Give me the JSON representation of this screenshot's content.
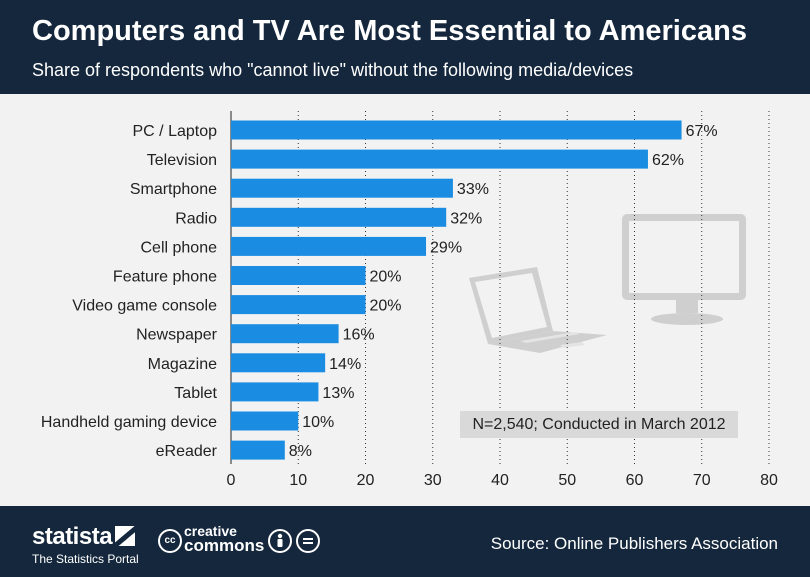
{
  "header": {
    "title": "Computers and TV Are Most Essential to Americans",
    "subtitle": "Share of respondents who \"cannot live\" without the following media/devices"
  },
  "chart_data": {
    "type": "bar",
    "orientation": "horizontal",
    "categories": [
      "PC / Laptop",
      "Television",
      "Smartphone",
      "Radio",
      "Cell phone",
      "Feature phone",
      "Video game console",
      "Newspaper",
      "Magazine",
      "Tablet",
      "Handheld gaming device",
      "eReader"
    ],
    "values": [
      67,
      62,
      33,
      32,
      29,
      20,
      20,
      16,
      14,
      13,
      10,
      8
    ],
    "value_labels": [
      "67%",
      "62%",
      "33%",
      "32%",
      "29%",
      "20%",
      "20%",
      "16%",
      "14%",
      "13%",
      "10%",
      "8%"
    ],
    "xlim": [
      0,
      80
    ],
    "xticks": [
      0,
      10,
      20,
      30,
      40,
      50,
      60,
      70,
      80
    ],
    "grid": "vertical dotted",
    "bar_color": "#1a8de2"
  },
  "note": "N=2,540; Conducted in March 2012",
  "footer": {
    "brand": "statista",
    "tagline": "The Statistics Portal",
    "cc_line1": "creative",
    "cc_line2": "commons",
    "source": "Source: Online Publishers Association"
  },
  "icons": [
    "laptop-icon",
    "monitor-icon",
    "by-attribution-icon",
    "no-derivatives-icon"
  ]
}
